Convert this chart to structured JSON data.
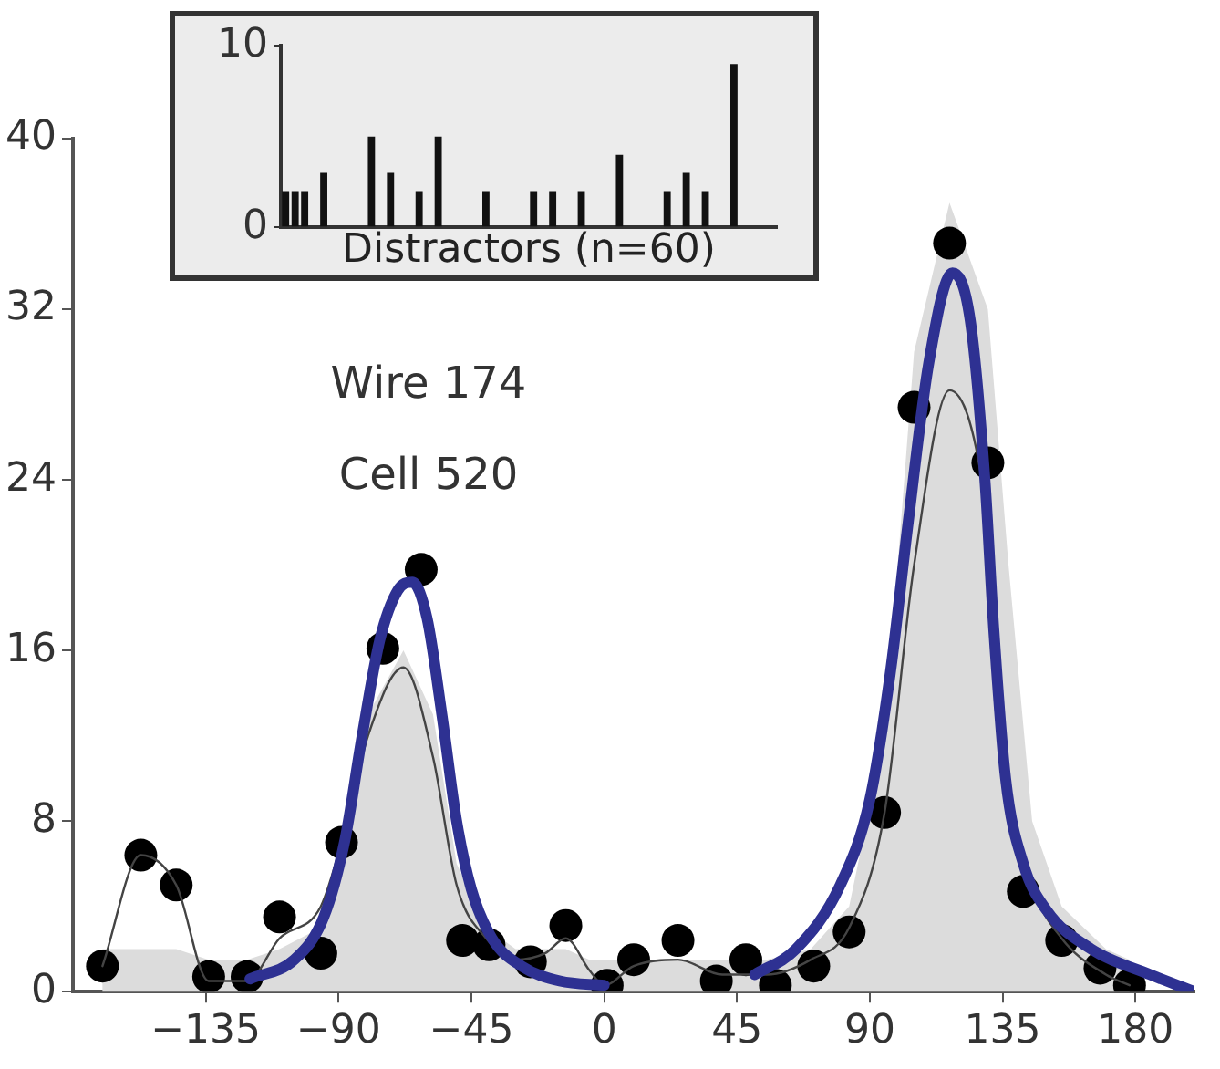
{
  "chart_data": [
    {
      "type": "bar",
      "xlabel": "Distractors (n=60)",
      "categories": [
        null,
        null,
        null,
        null,
        null,
        null,
        null,
        null,
        null,
        null,
        null,
        null,
        null,
        null,
        null,
        null,
        null,
        null,
        null,
        null,
        null,
        null,
        null,
        null,
        null,
        null,
        null,
        null,
        null,
        null,
        null,
        null,
        null,
        null,
        null,
        null,
        null,
        null,
        null,
        null,
        null,
        null,
        null,
        null,
        null,
        null,
        null,
        null,
        null,
        null,
        null,
        null
      ],
      "values": [
        2,
        2,
        2,
        null,
        3,
        null,
        null,
        null,
        null,
        5,
        null,
        3,
        null,
        null,
        2,
        null,
        5,
        null,
        null,
        null,
        null,
        2,
        null,
        null,
        null,
        null,
        2,
        null,
        2,
        null,
        null,
        2,
        null,
        null,
        null,
        4,
        null,
        null,
        null,
        null,
        2,
        null,
        3,
        null,
        2,
        null,
        null,
        9,
        null,
        null,
        null,
        null
      ],
      "color": "#111111",
      "ylim": [
        0,
        10
      ],
      "yticks": [
        0,
        10
      ],
      "tick_labels": "y",
      "grid": false,
      "legend": false
    },
    {
      "type": "scatter",
      "annotations": [
        "Wire 174",
        "Cell 520"
      ],
      "xlim": [
        -180,
        200
      ],
      "ylim": [
        0,
        40
      ],
      "xticks": [
        {
          "value": -135,
          "label": "−135"
        },
        {
          "value": -90,
          "label": "−90"
        },
        {
          "value": -45,
          "label": "−45"
        },
        0,
        45,
        90,
        135,
        180
      ],
      "yticks": [
        0,
        8,
        16,
        24,
        32,
        40
      ],
      "grid": false,
      "legend": false,
      "series": [
        {
          "type": "line",
          "color": "#444444",
          "line_style": "solid",
          "marker": "none",
          "x": [
            -170,
            -157,
            -145,
            -134,
            -121,
            -110,
            -96,
            -89,
            -80,
            -68,
            -58,
            -50,
            -40,
            -30,
            -20,
            -13,
            -5,
            0,
            10,
            25,
            40,
            55,
            70,
            83,
            95,
            105,
            117,
            130,
            137,
            145,
            155,
            170,
            178
          ],
          "values": [
            1.2,
            6.4,
            5,
            0.5,
            0.5,
            2.5,
            4,
            7,
            12,
            15.2,
            11,
            5,
            2.5,
            1.5,
            1.8,
            2.5,
            1,
            0.3,
            1.2,
            1.5,
            0.8,
            0.8,
            1.5,
            3,
            8.4,
            20,
            28.2,
            22,
            10,
            5,
            2.5,
            0.8,
            0.3
          ],
          "lower": [
            0,
            0,
            0,
            0,
            0,
            0,
            0,
            0,
            0,
            0,
            0,
            0,
            0,
            0,
            0,
            0,
            0,
            0,
            0,
            0,
            0,
            0,
            0,
            0,
            0,
            0,
            0,
            0,
            0,
            0,
            0,
            0,
            0
          ],
          "upper": [
            2,
            2,
            2,
            1.5,
            1.5,
            2,
            3,
            6,
            13,
            16,
            13,
            6,
            3,
            2,
            2,
            2,
            1.5,
            1.5,
            1.5,
            1.5,
            1.5,
            1.5,
            2,
            4,
            12,
            30,
            37,
            32,
            20,
            8,
            4,
            2,
            1.5
          ]
        },
        {
          "type": "scatter",
          "color": "#000000",
          "marker": "circle",
          "x": [
            -170,
            -157,
            -145,
            -134,
            -121,
            -110,
            -96,
            -89,
            -75,
            -62,
            -48,
            -39,
            -25,
            -13,
            1,
            10,
            25,
            38,
            48,
            58,
            71,
            83,
            95,
            105,
            117,
            130,
            142,
            155,
            168,
            178
          ],
          "values": [
            1.2,
            6.4,
            5,
            0.7,
            0.7,
            3.5,
            1.8,
            7,
            16.1,
            19.8,
            2.4,
            2.2,
            1.4,
            3.1,
            0.3,
            1.5,
            2.4,
            0.5,
            1.5,
            0.3,
            1.2,
            2.8,
            8.4,
            27.4,
            35.1,
            24.8,
            4.7,
            2.4,
            1.1,
            0.3
          ]
        },
        {
          "type": "line",
          "color": "#2e3192",
          "line_style": "solid",
          "marker": "none",
          "x": [
            -120,
            -105,
            -95,
            -88,
            -82,
            -76,
            -70,
            -65,
            -60,
            -55,
            -50,
            -45,
            -38,
            -28,
            -15,
            0,
            25,
            51,
            65,
            80,
            90,
            97,
            103,
            110,
            118,
            124,
            129,
            132,
            136,
            142,
            150,
            165,
            185,
            200
          ],
          "values": [
            0.6,
            1.5,
            3.5,
            7,
            12,
            16.5,
            18.8,
            19.2,
            17.5,
            13,
            8,
            4.8,
            2.5,
            1.2,
            0.5,
            0.3,
            null,
            0.8,
            2,
            5,
            9,
            15,
            22,
            29.5,
            33.7,
            31.5,
            24,
            17,
            10,
            6,
            3.8,
            2,
            0.8,
            0
          ]
        }
      ]
    }
  ]
}
